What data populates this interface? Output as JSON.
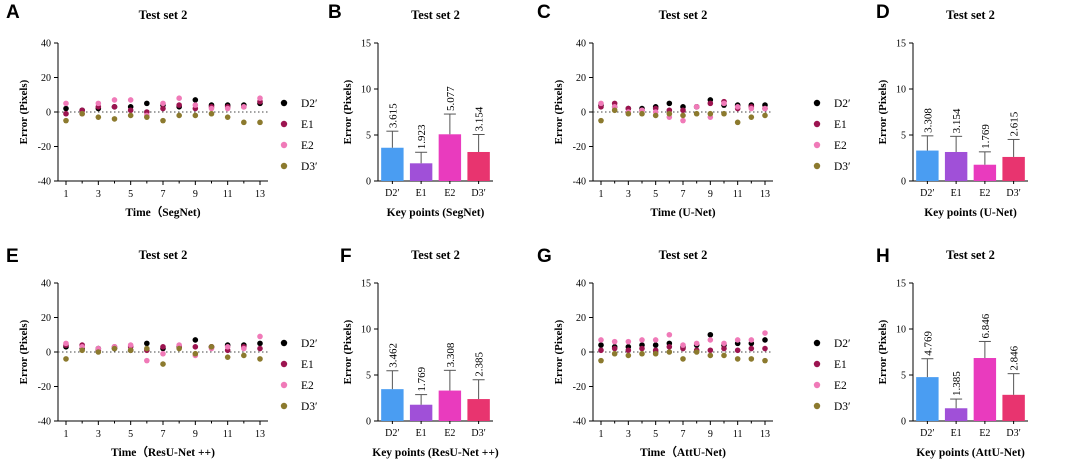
{
  "chart_data": [
    {
      "panel": "A",
      "type": "scatter",
      "title": "Test set 2",
      "xlabel": "Time（SegNet)",
      "ylabel": "Error (Pixels)",
      "ylim": [
        -40,
        40
      ],
      "yticks": [
        "40",
        "20",
        "0",
        "-20",
        "-40"
      ],
      "xticks": [
        "1",
        "3",
        "5",
        "7",
        "9",
        "11",
        "13"
      ],
      "x": [
        1,
        2,
        3,
        4,
        5,
        6,
        7,
        8,
        9,
        10,
        11,
        12,
        13
      ],
      "series": [
        {
          "name": "D2′",
          "color": "#000000",
          "values": [
            2,
            1,
            2,
            3,
            3,
            5,
            4,
            3,
            7,
            4,
            4,
            4,
            5
          ]
        },
        {
          "name": "E1",
          "color": "#9c1450",
          "values": [
            -1,
            1,
            3,
            3,
            1,
            0,
            2,
            4,
            2,
            3,
            3,
            3,
            6
          ]
        },
        {
          "name": "E2",
          "color": "#f07ab8",
          "values": [
            5,
            -1,
            5,
            7,
            7,
            -2,
            5,
            8,
            4,
            2,
            2,
            3,
            8
          ]
        },
        {
          "name": "D3′",
          "color": "#8c7a2e",
          "values": [
            -5,
            -1,
            -3,
            -4,
            -2,
            -3,
            -5,
            -2,
            -2,
            -1,
            -3,
            -6,
            -6
          ]
        }
      ]
    },
    {
      "panel": "B",
      "type": "bar",
      "title": "Test set 2",
      "xlabel": "Key points (SegNet)",
      "ylabel": "Error (Pixels)",
      "ylim": [
        0,
        15
      ],
      "yticks": [
        "15",
        "10",
        "5",
        "0"
      ],
      "categories": [
        "D2′",
        "E1",
        "E2",
        "D3′"
      ],
      "values": [
        3.615,
        1.923,
        5.077,
        3.154
      ],
      "value_labels": [
        "3.615",
        "1.923",
        "5.077",
        "3.154"
      ],
      "errors": [
        1.8,
        1.2,
        2.2,
        1.9
      ],
      "colors": [
        "#4a9df2",
        "#a050d8",
        "#e93bbe",
        "#e8346f"
      ]
    },
    {
      "panel": "C",
      "type": "scatter",
      "title": "Test set 2",
      "xlabel": "Time (U-Net)",
      "ylabel": "Error (Pixels)",
      "ylim": [
        -40,
        40
      ],
      "yticks": [
        "40",
        "20",
        "0",
        "-20",
        "-40"
      ],
      "xticks": [
        "1",
        "3",
        "5",
        "7",
        "9",
        "11",
        "13"
      ],
      "x": [
        1,
        2,
        3,
        4,
        5,
        6,
        7,
        8,
        9,
        10,
        11,
        12,
        13
      ],
      "series": [
        {
          "name": "D2′",
          "color": "#000000",
          "values": [
            4,
            3,
            2,
            2,
            3,
            5,
            3,
            3,
            7,
            4,
            4,
            4,
            4
          ]
        },
        {
          "name": "E1",
          "color": "#9c1450",
          "values": [
            3,
            5,
            2,
            1,
            2,
            1,
            1,
            3,
            5,
            6,
            2,
            3,
            2
          ]
        },
        {
          "name": "E2",
          "color": "#f07ab8",
          "values": [
            5,
            3,
            0,
            1,
            0,
            -3,
            -5,
            3,
            -3,
            5,
            3,
            2,
            2
          ]
        },
        {
          "name": "D3′",
          "color": "#8c7a2e",
          "values": [
            -5,
            1,
            -1,
            -1,
            -2,
            -1,
            -2,
            -1,
            -1,
            -1,
            -6,
            -3,
            -2
          ]
        }
      ]
    },
    {
      "panel": "D",
      "type": "bar",
      "title": "Test set 2",
      "xlabel": "Key points (U-Net)",
      "ylabel": "Error (Pixels)",
      "ylim": [
        0,
        15
      ],
      "yticks": [
        "15",
        "10",
        "5",
        "0"
      ],
      "categories": [
        "D2′",
        "E1",
        "E2",
        "D3′"
      ],
      "values": [
        3.308,
        3.154,
        1.769,
        2.615
      ],
      "value_labels": [
        "3.308",
        "3.154",
        "1.769",
        "2.615"
      ],
      "errors": [
        1.6,
        1.7,
        1.4,
        1.9
      ],
      "colors": [
        "#4a9df2",
        "#a050d8",
        "#e93bbe",
        "#e8346f"
      ]
    },
    {
      "panel": "E",
      "type": "scatter",
      "title": "Test set 2",
      "xlabel": "Time（ResU-Net ++)",
      "ylabel": "Error (Pixels)",
      "ylim": [
        -40,
        40
      ],
      "yticks": [
        "40",
        "20",
        "0",
        "-20",
        "-40"
      ],
      "xticks": [
        "1",
        "3",
        "5",
        "7",
        "9",
        "11",
        "13"
      ],
      "x": [
        1,
        2,
        3,
        4,
        5,
        6,
        7,
        8,
        9,
        10,
        11,
        12,
        13
      ],
      "series": [
        {
          "name": "D2′",
          "color": "#000000",
          "values": [
            3,
            2,
            2,
            2,
            1,
            5,
            2,
            3,
            7,
            3,
            4,
            4,
            5
          ]
        },
        {
          "name": "E1",
          "color": "#9c1450",
          "values": [
            4,
            4,
            1,
            3,
            3,
            1,
            3,
            3,
            3,
            3,
            1,
            3,
            2
          ]
        },
        {
          "name": "E2",
          "color": "#f07ab8",
          "values": [
            5,
            3,
            2,
            3,
            4,
            -5,
            -1,
            4,
            -2,
            2,
            3,
            2,
            9
          ]
        },
        {
          "name": "D3′",
          "color": "#8c7a2e",
          "values": [
            -4,
            1,
            0,
            2,
            1,
            2,
            -7,
            2,
            -1,
            3,
            -3,
            -2,
            -4
          ]
        }
      ]
    },
    {
      "panel": "F",
      "type": "bar",
      "title": "Test set 2",
      "xlabel": "Key points (ResU-Net ++)",
      "ylabel": "Error (Pixels)",
      "ylim": [
        0,
        15
      ],
      "yticks": [
        "15",
        "10",
        "5",
        "0"
      ],
      "categories": [
        "D2′",
        "E1",
        "E2",
        "D3′"
      ],
      "values": [
        3.462,
        1.769,
        3.308,
        2.385
      ],
      "value_labels": [
        "3.462",
        "1.769",
        "3.308",
        "2.385"
      ],
      "errors": [
        2.0,
        1.1,
        2.2,
        2.1
      ],
      "colors": [
        "#4a9df2",
        "#a050d8",
        "#e93bbe",
        "#e8346f"
      ]
    },
    {
      "panel": "G",
      "type": "scatter",
      "title": "Test set 2",
      "xlabel": "Time（AttU-Net)",
      "ylabel": "Error (Pixels)",
      "ylim": [
        -40,
        40
      ],
      "yticks": [
        "40",
        "20",
        "0",
        "-20",
        "-40"
      ],
      "xticks": [
        "1",
        "3",
        "5",
        "7",
        "9",
        "11",
        "13"
      ],
      "x": [
        1,
        2,
        3,
        4,
        5,
        6,
        7,
        8,
        9,
        10,
        11,
        12,
        13
      ],
      "series": [
        {
          "name": "D2′",
          "color": "#000000",
          "values": [
            4,
            3,
            3,
            4,
            4,
            5,
            3,
            4,
            10,
            4,
            5,
            5,
            7
          ]
        },
        {
          "name": "E1",
          "color": "#9c1450",
          "values": [
            1,
            2,
            1,
            2,
            1,
            3,
            2,
            1,
            1,
            2,
            1,
            2,
            2
          ]
        },
        {
          "name": "E2",
          "color": "#f07ab8",
          "values": [
            7,
            6,
            6,
            7,
            7,
            10,
            4,
            5,
            7,
            5,
            7,
            7,
            11
          ]
        },
        {
          "name": "D3′",
          "color": "#8c7a2e",
          "values": [
            -5,
            -1,
            -2,
            -1,
            -1,
            0,
            -4,
            0,
            -2,
            -2,
            -4,
            -4,
            -5
          ]
        }
      ]
    },
    {
      "panel": "H",
      "type": "bar",
      "title": "Test set 2",
      "xlabel": "Key points (AttU-Net)",
      "ylabel": "Error (Pixels)",
      "ylim": [
        0,
        15
      ],
      "yticks": [
        "15",
        "10",
        "5",
        "0"
      ],
      "categories": [
        "D2′",
        "E1",
        "E2",
        "D3′"
      ],
      "values": [
        4.769,
        1.385,
        6.846,
        2.846
      ],
      "value_labels": [
        "4.769",
        "1.385",
        "6.846",
        "2.846"
      ],
      "errors": [
        2.0,
        1.0,
        1.8,
        2.3
      ],
      "colors": [
        "#4a9df2",
        "#a050d8",
        "#e93bbe",
        "#e8346f"
      ]
    }
  ]
}
